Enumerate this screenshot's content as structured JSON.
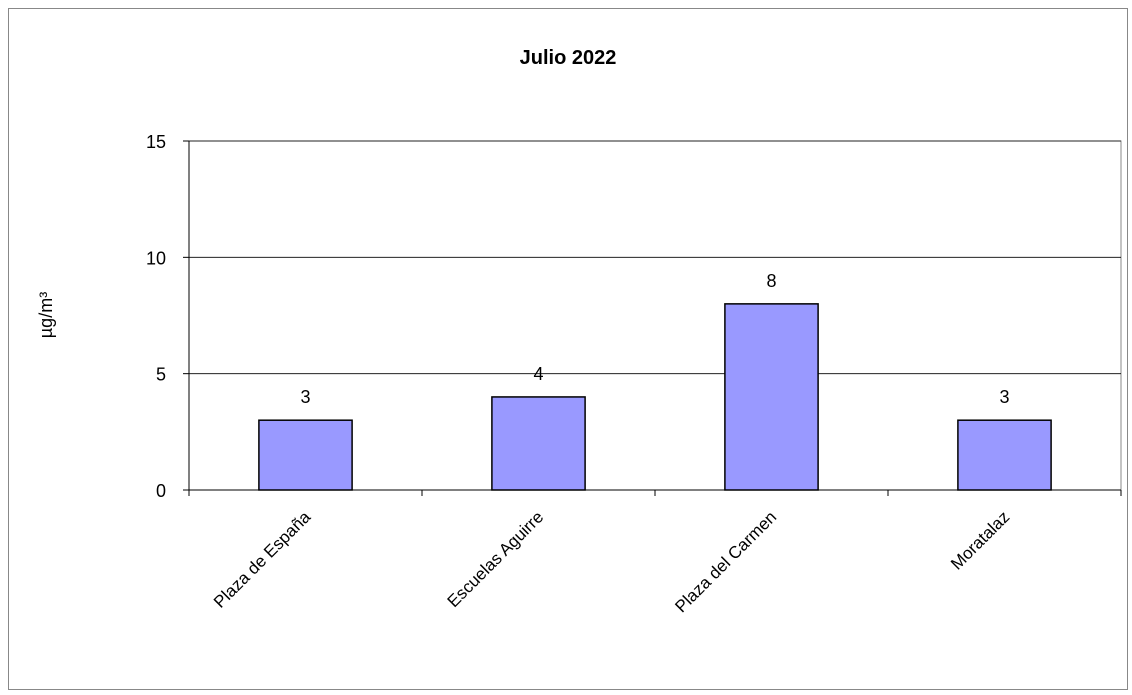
{
  "chart_data": {
    "type": "bar",
    "title": "Julio 2022",
    "xlabel": "",
    "ylabel": "µg/m³",
    "categories": [
      "Plaza de España",
      "Escuelas Aguirre",
      "Plaza del Carmen",
      "Moratalaz"
    ],
    "values": [
      3,
      4,
      8,
      3
    ],
    "data_labels": [
      "3",
      "4",
      "8",
      "3"
    ],
    "ylim": [
      0,
      15
    ],
    "yticks": [
      0,
      5,
      10,
      15
    ],
    "grid": true,
    "legend": "none",
    "bar_color": "#9999ff",
    "bar_border_color": "#000000"
  }
}
